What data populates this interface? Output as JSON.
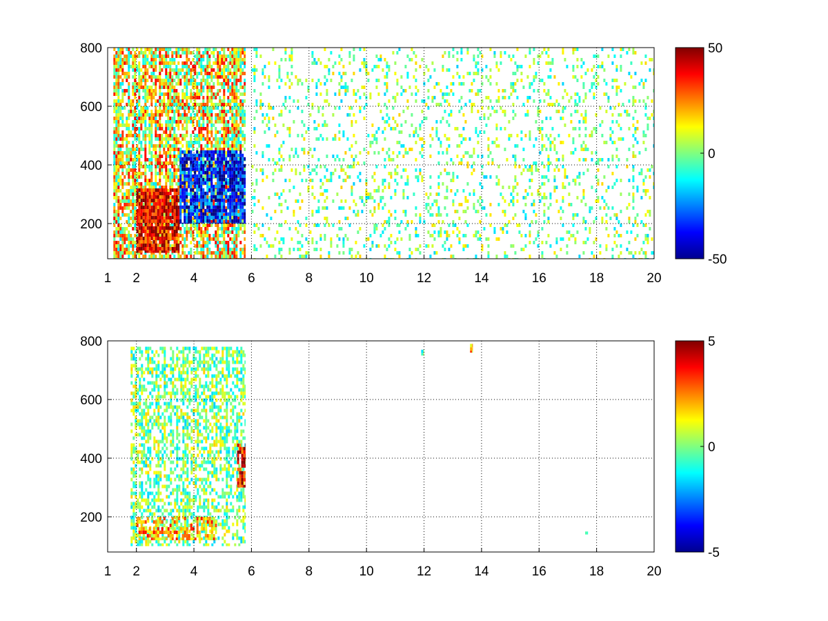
{
  "chart_data": [
    {
      "type": "heatmap",
      "title": "",
      "xlabel": "",
      "ylabel": "",
      "xlim": [
        1,
        20
      ],
      "ylim": [
        80,
        800
      ],
      "xticks": [
        1,
        2,
        4,
        6,
        8,
        10,
        12,
        14,
        16,
        18,
        20
      ],
      "xtick_labels": [
        "1",
        "2",
        "4",
        "6",
        "8",
        "10",
        "12",
        "14",
        "16",
        "18",
        "20"
      ],
      "yticks": [
        200,
        400,
        600,
        800
      ],
      "ytick_labels": [
        "200",
        "400",
        "600",
        "800"
      ],
      "grid": true,
      "colormap": "jet",
      "clim": [
        -50,
        50
      ],
      "colorbar_ticks": [
        -50,
        0,
        50
      ],
      "colorbar_tick_labels": [
        "-50",
        "0",
        "50"
      ],
      "regions": [
        {
          "x": [
            1.2,
            5.8
          ],
          "y": [
            80,
            800
          ],
          "value": 12,
          "density": 0.85,
          "note_value": "mixed"
        },
        {
          "x": [
            2.0,
            3.5
          ],
          "y": [
            100,
            320
          ],
          "value": 38,
          "density": 0.9
        },
        {
          "x": [
            3.5,
            5.8
          ],
          "y": [
            200,
            450
          ],
          "value": -35,
          "density": 0.9
        },
        {
          "x": [
            6.0,
            20.0
          ],
          "y": [
            80,
            800
          ],
          "value": 0,
          "density": 0.18
        }
      ]
    },
    {
      "type": "heatmap",
      "title": "",
      "xlabel": "",
      "ylabel": "",
      "xlim": [
        1,
        20
      ],
      "ylim": [
        80,
        800
      ],
      "xticks": [
        1,
        2,
        4,
        6,
        8,
        10,
        12,
        14,
        16,
        18,
        20
      ],
      "xtick_labels": [
        "1",
        "2",
        "4",
        "6",
        "8",
        "10",
        "12",
        "14",
        "16",
        "18",
        "20"
      ],
      "yticks": [
        200,
        400,
        600,
        800
      ],
      "ytick_labels": [
        "200",
        "400",
        "600",
        "800"
      ],
      "grid": true,
      "colormap": "jet",
      "clim": [
        -5,
        5
      ],
      "colorbar_ticks": [
        -5,
        0,
        5
      ],
      "colorbar_tick_labels": [
        "-5",
        "0",
        "5"
      ],
      "regions": [
        {
          "x": [
            1.8,
            5.8
          ],
          "y": [
            100,
            780
          ],
          "value": 0,
          "density": 0.6
        },
        {
          "x": [
            2.0,
            4.8
          ],
          "y": [
            120,
            200
          ],
          "value": 2,
          "density": 0.7
        },
        {
          "x": [
            5.5,
            5.8
          ],
          "y": [
            300,
            450
          ],
          "value": 4,
          "density": 0.8
        },
        {
          "x": [
            11.9,
            12.0
          ],
          "y": [
            750,
            770
          ],
          "value": -1,
          "density": 1.0
        },
        {
          "x": [
            13.6,
            13.7
          ],
          "y": [
            760,
            790
          ],
          "value": 2,
          "density": 1.0
        },
        {
          "x": [
            17.6,
            17.7
          ],
          "y": [
            140,
            150
          ],
          "value": 0,
          "density": 1.0
        }
      ]
    }
  ],
  "colors": {
    "grid": "#000000",
    "background": "#ffffff"
  }
}
